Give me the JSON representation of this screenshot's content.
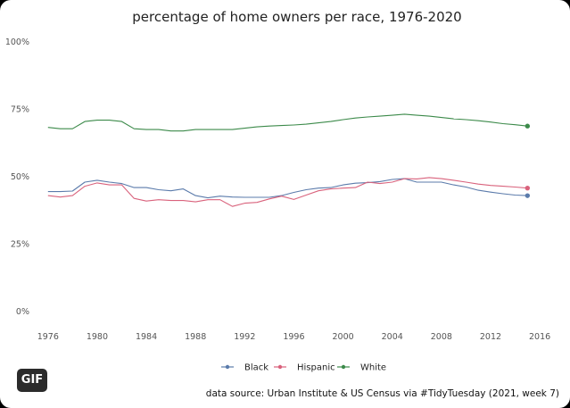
{
  "badge": "GIF",
  "chart_data": {
    "type": "line",
    "title": "percentage of home owners per race, 1976-2020",
    "xlabel": "",
    "ylabel": "",
    "x": [
      1976,
      1977,
      1978,
      1979,
      1980,
      1981,
      1982,
      1983,
      1984,
      1985,
      1986,
      1987,
      1988,
      1989,
      1990,
      1991,
      1992,
      1993,
      1994,
      1995,
      1996,
      1997,
      1998,
      1999,
      2000,
      2001,
      2002,
      2003,
      2004,
      2005,
      2006,
      2007,
      2008,
      2009,
      2010,
      2011,
      2012,
      2013,
      2014,
      2015
    ],
    "xlim": [
      1975,
      2016.5
    ],
    "ylim": [
      0,
      1
    ],
    "x_ticks": [
      1976,
      1980,
      1984,
      1988,
      1992,
      1996,
      2000,
      2004,
      2008,
      2012,
      2016
    ],
    "y_ticks": [
      0,
      0.25,
      0.5,
      0.75,
      1
    ],
    "y_tick_labels": [
      "0%",
      "25%",
      "50%",
      "75%",
      "100%"
    ],
    "grid": false,
    "legend_position": "bottom",
    "series": [
      {
        "name": "Black",
        "color": "#5b7bab",
        "values": [
          0.445,
          0.445,
          0.447,
          0.48,
          0.487,
          0.48,
          0.475,
          0.46,
          0.46,
          0.452,
          0.448,
          0.455,
          0.43,
          0.422,
          0.428,
          0.425,
          0.424,
          0.424,
          0.424,
          0.43,
          0.442,
          0.452,
          0.458,
          0.46,
          0.47,
          0.476,
          0.478,
          0.482,
          0.49,
          0.493,
          0.48,
          0.48,
          0.48,
          0.47,
          0.462,
          0.45,
          0.443,
          0.437,
          0.432,
          0.43
        ]
      },
      {
        "name": "Hispanic",
        "color": "#d9627c",
        "values": [
          0.43,
          0.425,
          0.43,
          0.465,
          0.477,
          0.47,
          0.47,
          0.42,
          0.41,
          0.415,
          0.412,
          0.412,
          0.407,
          0.415,
          0.415,
          0.39,
          0.402,
          0.405,
          0.418,
          0.428,
          0.416,
          0.432,
          0.448,
          0.455,
          0.458,
          0.46,
          0.48,
          0.475,
          0.48,
          0.493,
          0.492,
          0.497,
          0.493,
          0.487,
          0.48,
          0.473,
          0.468,
          0.465,
          0.462,
          0.458
        ]
      },
      {
        "name": "White",
        "color": "#3c8a4a",
        "values": [
          0.683,
          0.678,
          0.678,
          0.705,
          0.71,
          0.71,
          0.705,
          0.678,
          0.675,
          0.675,
          0.67,
          0.67,
          0.675,
          0.675,
          0.675,
          0.675,
          0.68,
          0.685,
          0.688,
          0.69,
          0.692,
          0.695,
          0.7,
          0.705,
          0.712,
          0.718,
          0.722,
          0.725,
          0.728,
          0.732,
          0.728,
          0.725,
          0.72,
          0.715,
          0.712,
          0.708,
          0.703,
          0.697,
          0.693,
          0.688
        ]
      }
    ]
  },
  "caption": "data source: Urban Institute & US Census via #TidyTuesday (2021, week 7)"
}
